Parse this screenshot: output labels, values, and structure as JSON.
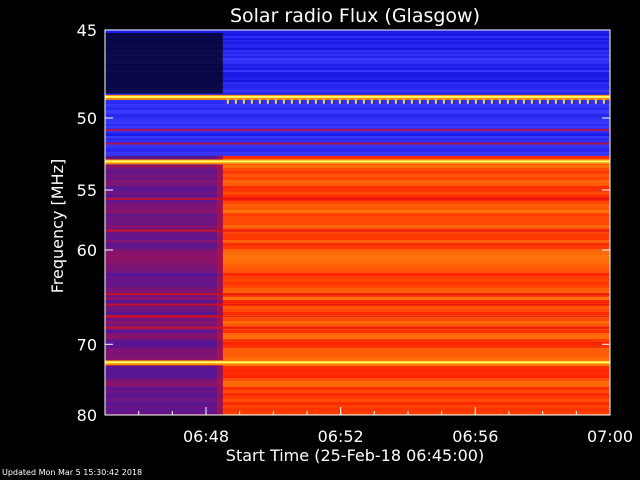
{
  "chart_data": {
    "type": "heatmap",
    "title": "Solar radio Flux (Glasgow)",
    "xlabel": "Start Time (25-Feb-18 06:45:00)",
    "ylabel": "Frequency [MHz]",
    "x_range": [
      "06:45",
      "07:00"
    ],
    "x_ticks": [
      "06:48",
      "06:52",
      "06:56",
      "07:00"
    ],
    "y_range": [
      45,
      80
    ],
    "y_ticks": [
      45,
      50,
      55,
      60,
      70,
      80
    ],
    "y_scale": "reciprocal",
    "grid": false,
    "colormap": [
      "#000000",
      "#1a1aff",
      "#7a0d8a",
      "#ff1a00",
      "#ff8a00",
      "#ffff33"
    ],
    "colors": {
      "background": "#000000",
      "axes": "#ffffff",
      "low_band": "#2020ff",
      "pre_onset": "#6a1aa8",
      "post_onset": "#ff3a00",
      "bright_line": "#ffff66"
    },
    "regions": {
      "blue_band_mhz": [
        45,
        52.5
      ],
      "onset_time": "06:48:30",
      "pre_onset_level": "low",
      "post_onset_level": "moderate"
    },
    "bright_lines_mhz": [
      48.7,
      52.9,
      72.3
    ]
  },
  "footer": {
    "updated": "Updated Mon Mar  5 15:30:42 2018"
  }
}
